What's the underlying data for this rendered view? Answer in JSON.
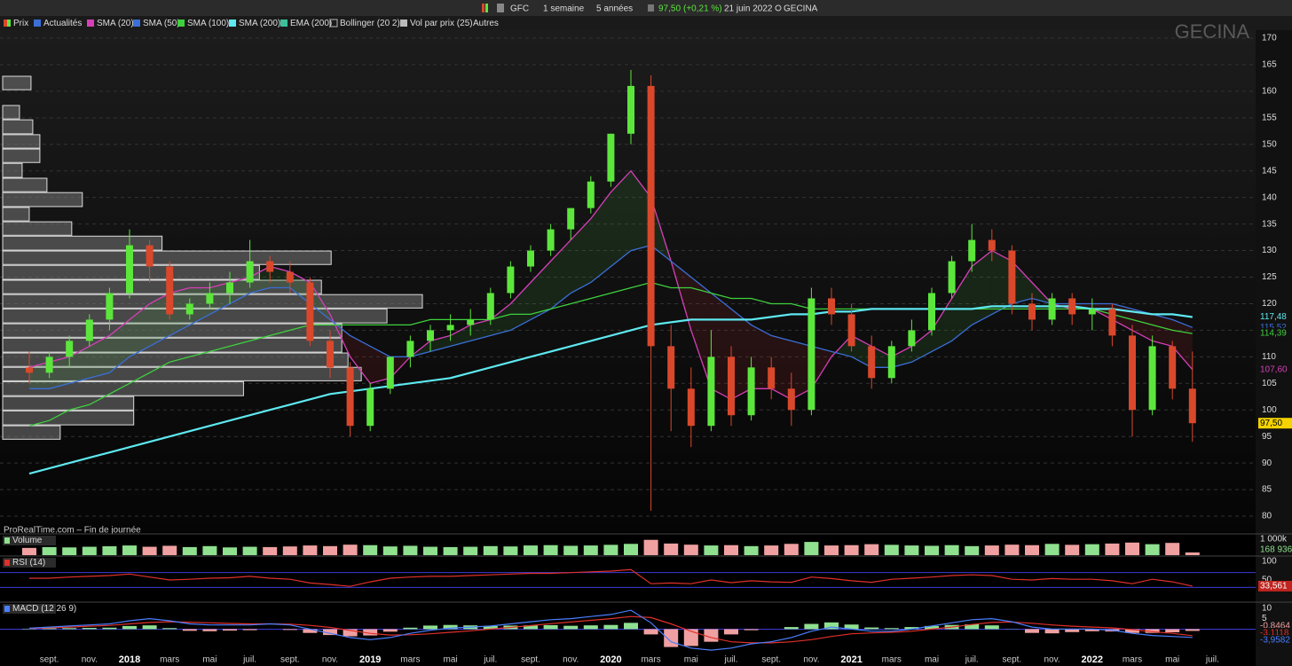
{
  "toolbar": {
    "symbol": "GFC",
    "interval": "1 semaine",
    "period": "5 années",
    "quote": "97,50",
    "change": "(+0,21 %)",
    "date": "21 juin 2022",
    "name": "GECINA"
  },
  "chart_data": {
    "type": "candlestick",
    "watermark": "GECINA",
    "footer": "ProRealTime.com – Fin de journée",
    "categories": [
      null,
      "sept.",
      null,
      "nov.",
      null,
      "2018",
      null,
      "mars",
      null,
      "mai",
      null,
      "juil.",
      null,
      "sept.",
      null,
      "nov.",
      null,
      "2019",
      null,
      "mars",
      null,
      "mai",
      null,
      "juil.",
      null,
      "sept.",
      null,
      "nov.",
      null,
      "2020",
      null,
      "mars",
      null,
      "mai",
      null,
      "juil.",
      null,
      "sept.",
      null,
      "nov.",
      null,
      "2021",
      null,
      "mars",
      null,
      "mai",
      null,
      "juil.",
      null,
      "sept.",
      null,
      "nov.",
      null,
      "2022",
      null,
      "mars",
      null,
      "mai",
      null,
      "juil."
    ],
    "ylim": [
      77,
      171.5
    ],
    "yticks": [
      80,
      85,
      90,
      95,
      100,
      105,
      110,
      115,
      120,
      125,
      130,
      135,
      140,
      145,
      150,
      155,
      160,
      165,
      170
    ],
    "grid": true,
    "price": {
      "name": "Prix",
      "up_color": "#5ce63c",
      "down_color": "#d9482b",
      "last_label": "97,50",
      "open": [
        108,
        107,
        110,
        113,
        117,
        122,
        131,
        127,
        118,
        120,
        122,
        124,
        128,
        126,
        124,
        113,
        108,
        97,
        104,
        110,
        113,
        115,
        116,
        117,
        122,
        127,
        130,
        134,
        138,
        143,
        152,
        161,
        112,
        104,
        97,
        110,
        99,
        108,
        104,
        100,
        121,
        118,
        112,
        106,
        112,
        115,
        122,
        128,
        132,
        130,
        120,
        117,
        121,
        118,
        119,
        114,
        100,
        112,
        104,
        null
      ],
      "high": [
        111,
        111,
        114,
        118,
        123,
        134,
        132,
        128,
        121,
        124,
        126,
        132,
        129,
        128,
        125,
        115,
        109,
        105,
        110,
        114,
        116,
        118,
        119,
        123,
        128,
        131,
        135,
        138,
        144,
        152,
        164,
        163,
        116,
        108,
        115,
        112,
        110,
        110,
        107,
        123,
        123,
        120,
        114,
        113,
        117,
        123,
        129,
        135,
        134,
        131,
        122,
        122,
        122,
        121,
        120,
        116,
        114,
        113,
        111,
        null
      ],
      "low": [
        105,
        106,
        108,
        112,
        115,
        121,
        124,
        117,
        117,
        119,
        120,
        123,
        124,
        122,
        112,
        106,
        95,
        96,
        103,
        108,
        111,
        113,
        114,
        116,
        121,
        126,
        129,
        132,
        137,
        142,
        150,
        81,
        96,
        93,
        96,
        97,
        98,
        102,
        97,
        99,
        116,
        111,
        104,
        105,
        111,
        114,
        121,
        126,
        128,
        118,
        115,
        116,
        116,
        115,
        112,
        95,
        99,
        102,
        94,
        null
      ],
      "close": [
        107,
        110,
        113,
        117,
        122,
        131,
        127,
        118,
        120,
        122,
        124,
        128,
        126,
        124,
        113,
        108,
        97,
        104,
        110,
        113,
        115,
        116,
        117,
        122,
        127,
        130,
        134,
        138,
        143,
        152,
        161,
        112,
        104,
        97,
        110,
        99,
        108,
        104,
        100,
        121,
        118,
        112,
        106,
        112,
        115,
        122,
        128,
        132,
        130,
        120,
        117,
        121,
        118,
        119,
        114,
        100,
        112,
        104,
        97.5,
        null
      ]
    },
    "series": [
      {
        "name": "SMA (20)",
        "color": "#d63fb8",
        "last_label": "107,60",
        "values": [
          108,
          109,
          110,
          112,
          114,
          117,
          120,
          122,
          123,
          123,
          124,
          125,
          127,
          126,
          124,
          118,
          110,
          105,
          106,
          110,
          113,
          114,
          116,
          117,
          120,
          124,
          128,
          132,
          136,
          141,
          145,
          140,
          128,
          115,
          104,
          102,
          104,
          104,
          102,
          104,
          110,
          114,
          112,
          110,
          112,
          115,
          121,
          127,
          130,
          128,
          124,
          120,
          119,
          119,
          117,
          115,
          113,
          112,
          107.6,
          null
        ]
      },
      {
        "name": "SMA (50)",
        "color": "#3a6fd8",
        "last_label": "115,52",
        "values": [
          104,
          104,
          105,
          106,
          107,
          110,
          112,
          114,
          116,
          118,
          120,
          122,
          123,
          123,
          120,
          117,
          114,
          112,
          110,
          110,
          111,
          112,
          113,
          114,
          115,
          117,
          119,
          122,
          124,
          127,
          130,
          131,
          128,
          125,
          122,
          119,
          116,
          114,
          113,
          112,
          111,
          110,
          108,
          108,
          109,
          111,
          113,
          116,
          118,
          120,
          121,
          120,
          120,
          120,
          120,
          119,
          118,
          117,
          115.52,
          null
        ]
      },
      {
        "name": "SMA (100)",
        "color": "#3ed13e",
        "last_label": "114,39",
        "values": [
          97,
          98,
          100,
          101,
          103,
          105,
          107,
          109,
          110,
          111,
          112,
          113,
          114,
          115,
          116,
          116,
          116,
          116,
          116,
          116,
          117,
          117,
          117,
          117,
          118,
          118,
          119,
          120,
          121,
          122,
          123,
          124,
          123,
          123,
          122,
          121,
          121,
          120,
          120,
          119,
          119,
          119,
          119,
          119,
          119,
          119,
          119,
          119,
          119,
          119,
          119,
          119,
          119,
          119,
          118,
          117,
          116,
          115,
          114.39,
          null
        ]
      },
      {
        "name": "SMA (200)",
        "color": "#5ee8f0",
        "last_label": "117,48",
        "values": [
          88,
          89,
          90,
          91,
          92,
          93,
          94,
          95,
          96,
          97,
          98,
          99,
          100,
          101,
          102,
          103,
          103.5,
          104,
          104.5,
          105,
          105.5,
          106,
          107,
          108,
          109,
          110,
          111,
          112,
          113,
          114,
          115,
          116,
          116.5,
          117,
          117,
          117,
          117,
          117.5,
          118,
          118,
          118.5,
          118.5,
          119,
          119,
          119,
          119,
          119,
          119,
          119.5,
          119.5,
          119.5,
          119.5,
          119.5,
          119,
          119,
          118.5,
          118,
          118,
          117.48,
          null
        ]
      }
    ],
    "indicators": [
      "Actualités",
      "EMA (200)",
      "Bollinger (20 2)",
      "Autres"
    ],
    "vol_by_price": {
      "name": "Vol par prix (25)",
      "xlim": [
        0,
        1415
      ],
      "bins": [
        94.4,
        97.1,
        99.9,
        102.6,
        105.4,
        108.1,
        110.8,
        113.6,
        116.3,
        119.1,
        121.8,
        124.5,
        127.3,
        130.0,
        132.8,
        135.5,
        138.2,
        141.0,
        143.7,
        146.5,
        149.2,
        151.9,
        154.7,
        157.4,
        160.2,
        162.9
      ],
      "values": [
        65,
        148,
        148,
        272,
        405,
        390,
        383,
        383,
        434,
        474,
        360,
        290,
        371,
        180,
        78,
        30,
        90,
        50,
        22,
        42,
        42,
        34,
        19,
        0,
        32
      ]
    },
    "volume": {
      "name": "Volume",
      "ylim": [
        0,
        1100000
      ],
      "yticks": [
        {
          "value": 1000000,
          "label": "1 000k"
        }
      ],
      "last_label": "168 936",
      "values": [
        450000,
        500000,
        480000,
        520000,
        550000,
        600000,
        520000,
        580000,
        500000,
        560000,
        480000,
        520000,
        500000,
        540000,
        600000,
        560000,
        650000,
        620000,
        540000,
        580000,
        520000,
        500000,
        520000,
        560000,
        540000,
        600000,
        620000,
        580000,
        600000,
        640000,
        700000,
        950000,
        720000,
        650000,
        600000,
        620000,
        560000,
        600000,
        700000,
        820000,
        600000,
        620000,
        680000,
        640000,
        600000,
        580000,
        620000,
        560000,
        600000,
        650000,
        620000,
        700000,
        640000,
        680000,
        720000,
        780000,
        680000,
        760000,
        168936,
        null
      ]
    },
    "rsi": {
      "name": "RSI (14)",
      "color": "#e0302a",
      "ylim": [
        0,
        105
      ],
      "yticks": [
        100,
        50
      ],
      "guides": [
        70,
        30
      ],
      "last_label": "33,561",
      "values": [
        55,
        55,
        58,
        60,
        62,
        66,
        58,
        50,
        52,
        55,
        56,
        60,
        55,
        52,
        42,
        38,
        33,
        45,
        55,
        58,
        60,
        60,
        62,
        64,
        66,
        68,
        68,
        70,
        72,
        74,
        78,
        40,
        42,
        40,
        50,
        43,
        48,
        45,
        44,
        58,
        54,
        48,
        44,
        52,
        55,
        58,
        62,
        64,
        62,
        52,
        50,
        54,
        52,
        52,
        48,
        40,
        52,
        45,
        33.561,
        null
      ]
    },
    "macd": {
      "name": "MACD (12 26 9)",
      "ylim": [
        -15,
        12
      ],
      "yticks": [
        10,
        5
      ],
      "macd": {
        "color": "#4a7fff",
        "last_label": "-3,9582",
        "values": [
          0.5,
          1,
          1.5,
          2,
          2.5,
          4,
          5,
          4,
          2.5,
          2,
          2,
          2,
          2.5,
          2,
          0,
          -2,
          -4,
          -5,
          -4,
          -2,
          -0.5,
          0.5,
          1,
          1.5,
          2.5,
          3.5,
          4.5,
          5,
          6,
          7,
          9,
          3,
          -6,
          -9,
          -10,
          -9,
          -7,
          -6,
          -4,
          -1,
          1,
          0,
          -1,
          -1,
          0,
          1.5,
          3,
          4.5,
          5,
          3.5,
          1,
          0,
          0,
          0,
          -0.5,
          -2,
          -3,
          -3.5,
          -3.9582,
          null
        ]
      },
      "signal": {
        "color": "#e0302a",
        "last_label": "-3,1118",
        "values": [
          0.3,
          0.6,
          1,
          1.4,
          1.8,
          2.5,
          3.2,
          3.5,
          3.3,
          3,
          2.7,
          2.5,
          2.5,
          2.4,
          1.8,
          0.8,
          -0.6,
          -2,
          -2.8,
          -2.7,
          -2.2,
          -1.5,
          -0.8,
          0,
          0.8,
          1.7,
          2.6,
          3.4,
          4.2,
          5,
          6,
          5.5,
          2.5,
          -1,
          -4,
          -6,
          -6.5,
          -6.5,
          -6,
          -5,
          -3.5,
          -2.2,
          -1.8,
          -1.5,
          -1,
          0,
          1,
          2.2,
          3.2,
          3.4,
          2.8,
          2,
          1.4,
          1,
          0.6,
          -0.2,
          -1.2,
          -2,
          -3.1118,
          null
        ]
      },
      "histogram": {
        "last_label": "-0,8464",
        "values": [
          0.2,
          0.4,
          0.5,
          0.6,
          0.7,
          1.5,
          1.8,
          0.5,
          -0.8,
          -1,
          -0.7,
          -0.5,
          0,
          -0.4,
          -1.8,
          -2.8,
          -3.4,
          -3,
          -1.2,
          0.7,
          1.7,
          2,
          1.8,
          1.5,
          1.7,
          1.8,
          1.9,
          1.6,
          1.8,
          2,
          3,
          -2.5,
          -8.5,
          -8,
          -6,
          -2.5,
          -0.5,
          0,
          1,
          2.5,
          3.2,
          2.2,
          0.8,
          0.5,
          1,
          1.5,
          2,
          2.3,
          1.8,
          0.1,
          -1.8,
          -2,
          -1.4,
          -1,
          -1.1,
          -1.8,
          -1.8,
          -1.5,
          -0.8464,
          null
        ]
      }
    }
  }
}
